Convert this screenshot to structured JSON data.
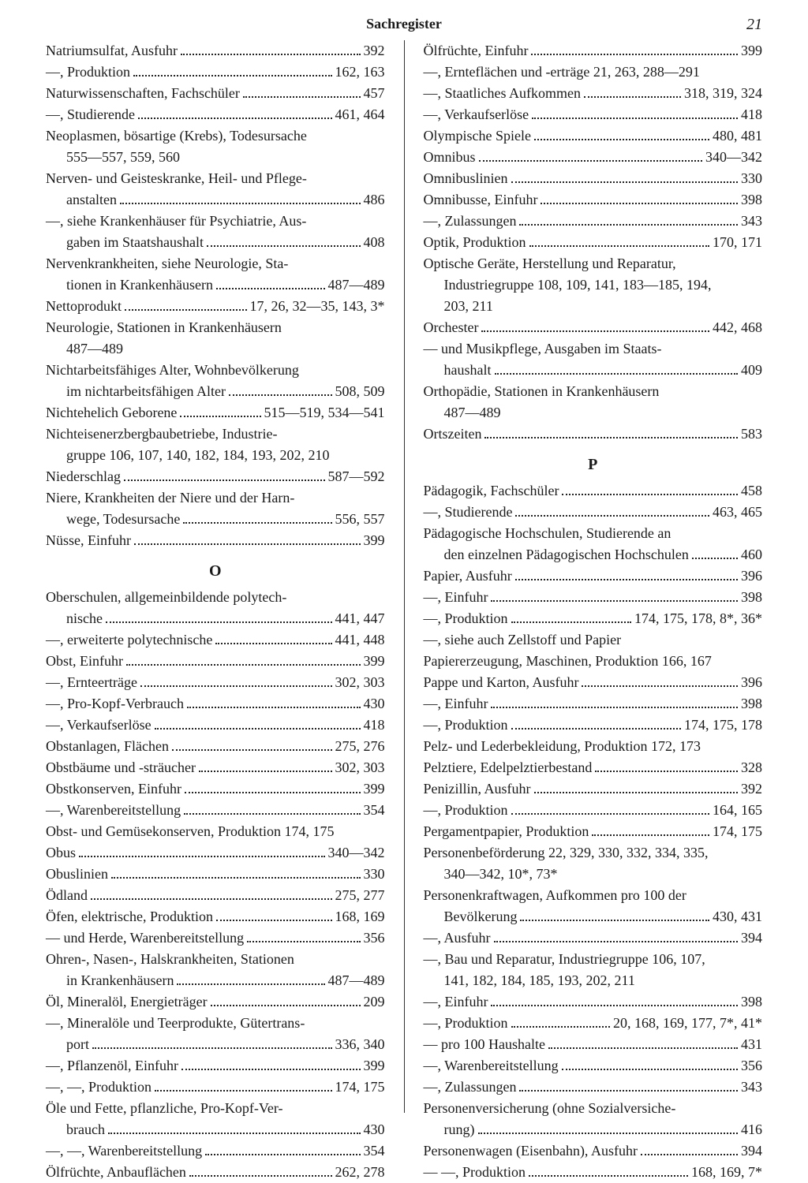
{
  "title": "Sachregister",
  "page_number": "21",
  "sections": {
    "O": "O",
    "P": "P"
  },
  "left": [
    {
      "t": "row",
      "lab": "Natriumsulfat, Ausfuhr",
      "pg": "392"
    },
    {
      "t": "row",
      "lab": "—, Produktion",
      "pg": "162, 163"
    },
    {
      "t": "row",
      "lab": "Naturwissenschaften, Fachschüler",
      "pg": "457"
    },
    {
      "t": "row",
      "lab": "—, Studierende",
      "pg": "461, 464"
    },
    {
      "t": "wrap",
      "text": "Neoplasmen, bösartige (Krebs), Todesursache"
    },
    {
      "t": "cont",
      "text": "555—557, 559, 560"
    },
    {
      "t": "wrap",
      "text": "Nerven- und Geisteskranke, Heil- und Pflege-"
    },
    {
      "t": "row",
      "lab": "anstalten",
      "indent": true,
      "pg": "486"
    },
    {
      "t": "wrap",
      "text": "—, siehe Krankenhäuser für Psychiatrie, Aus-"
    },
    {
      "t": "row",
      "lab": "gaben im Staatshaushalt",
      "indent": true,
      "pg": "408"
    },
    {
      "t": "wrap",
      "text": "Nervenkrankheiten, siehe Neurologie, Sta-"
    },
    {
      "t": "row",
      "lab": "tionen in Krankenhäusern",
      "indent": true,
      "pg": "487—489"
    },
    {
      "t": "row",
      "lab": "Nettoprodukt",
      "pg": "17, 26, 32—35, 143, 3*"
    },
    {
      "t": "wrap",
      "text": "Neurologie,  Stationen  in  Krankenhäusern"
    },
    {
      "t": "cont",
      "text": "487—489"
    },
    {
      "t": "wrap",
      "text": "Nichtarbeitsfähiges Alter, Wohnbevölkerung"
    },
    {
      "t": "row",
      "lab": "im nichtarbeitsfähigen Alter",
      "indent": true,
      "pg": "508, 509"
    },
    {
      "t": "row",
      "lab": "Nichtehelich Geborene",
      "pg": "515—519, 534—541"
    },
    {
      "t": "wrap",
      "text": "Nichteisenerzbergbaubetriebe, Industrie-"
    },
    {
      "t": "cont",
      "text": "gruppe 106, 107, 140, 182, 184, 193, 202, 210"
    },
    {
      "t": "row",
      "lab": "Niederschlag",
      "pg": "587—592"
    },
    {
      "t": "wrap",
      "text": "Niere, Krankheiten der Niere und der Harn-"
    },
    {
      "t": "row",
      "lab": "wege, Todesursache",
      "indent": true,
      "pg": "556, 557"
    },
    {
      "t": "row",
      "lab": "Nüsse, Einfuhr",
      "pg": "399"
    },
    {
      "t": "section",
      "key": "O"
    },
    {
      "t": "wrap",
      "text": "Oberschulen, allgemeinbildende polytech-"
    },
    {
      "t": "row",
      "lab": "nische",
      "indent": true,
      "pg": "441, 447"
    },
    {
      "t": "row",
      "lab": "—, erweiterte polytechnische",
      "pg": "441, 448"
    },
    {
      "t": "row",
      "lab": "Obst, Einfuhr",
      "pg": "399"
    },
    {
      "t": "row",
      "lab": "—, Ernteerträge",
      "pg": "302, 303"
    },
    {
      "t": "row",
      "lab": "—, Pro-Kopf-Verbrauch",
      "pg": "430"
    },
    {
      "t": "row",
      "lab": "—, Verkaufserlöse",
      "pg": "418"
    },
    {
      "t": "row",
      "lab": "Obstanlagen, Flächen",
      "pg": "275, 276"
    },
    {
      "t": "row",
      "lab": "Obstbäume und -sträucher",
      "pg": "302, 303"
    },
    {
      "t": "row",
      "lab": "Obstkonserven, Einfuhr",
      "pg": "399"
    },
    {
      "t": "row",
      "lab": "—, Warenbereitstellung",
      "pg": "354"
    },
    {
      "t": "wrap",
      "text": "Obst- und Gemüsekonserven, Produktion 174, 175"
    },
    {
      "t": "row",
      "lab": "Obus",
      "pg": "340—342"
    },
    {
      "t": "row",
      "lab": "Obuslinien",
      "pg": "330"
    },
    {
      "t": "row",
      "lab": "Ödland",
      "pg": "275, 277"
    },
    {
      "t": "row",
      "lab": "Öfen, elektrische, Produktion",
      "pg": "168, 169"
    },
    {
      "t": "row",
      "lab": "— und Herde, Warenbereitstellung",
      "pg": "356"
    },
    {
      "t": "wrap",
      "text": "Ohren-, Nasen-, Halskrankheiten, Stationen"
    },
    {
      "t": "row",
      "lab": "in Krankenhäusern",
      "indent": true,
      "pg": "487—489"
    },
    {
      "t": "row",
      "lab": "Öl, Mineralöl, Energieträger",
      "pg": "209"
    },
    {
      "t": "wrap",
      "text": "—, Mineralöle und Teerprodukte, Gütertrans-"
    },
    {
      "t": "row",
      "lab": "port",
      "indent": true,
      "pg": "336, 340"
    },
    {
      "t": "row",
      "lab": "—, Pflanzenöl, Einfuhr",
      "pg": "399"
    },
    {
      "t": "row",
      "lab": "—, —, Produktion",
      "pg": "174, 175"
    },
    {
      "t": "wrap",
      "text": "Öle und Fette, pflanzliche, Pro-Kopf-Ver-"
    },
    {
      "t": "row",
      "lab": "brauch",
      "indent": true,
      "pg": "430"
    },
    {
      "t": "row",
      "lab": "—, —, Warenbereitstellung",
      "pg": "354"
    },
    {
      "t": "row",
      "lab": "Ölfrüchte, Anbauflächen",
      "pg": "262, 278"
    }
  ],
  "right": [
    {
      "t": "row",
      "lab": "Ölfrüchte, Einfuhr",
      "pg": "399"
    },
    {
      "t": "wrap",
      "text": "—, Ernteflächen und -erträge 21, 263, 288—291"
    },
    {
      "t": "row",
      "lab": "—, Staatliches Aufkommen",
      "pg": "318, 319, 324"
    },
    {
      "t": "row",
      "lab": "—, Verkaufserlöse",
      "pg": "418"
    },
    {
      "t": "row",
      "lab": "Olympische Spiele",
      "pg": "480, 481"
    },
    {
      "t": "row",
      "lab": "Omnibus",
      "pg": "340—342"
    },
    {
      "t": "row",
      "lab": "Omnibuslinien",
      "pg": "330"
    },
    {
      "t": "row",
      "lab": "Omnibusse, Einfuhr",
      "pg": "398"
    },
    {
      "t": "row",
      "lab": "—, Zulassungen",
      "pg": "343"
    },
    {
      "t": "row",
      "lab": "Optik, Produktion",
      "pg": "170, 171"
    },
    {
      "t": "wrap",
      "text": "Optische Geräte, Herstellung und Reparatur,"
    },
    {
      "t": "cont",
      "text": "Industriegruppe 108, 109, 141, 183—185, 194,"
    },
    {
      "t": "cont",
      "text": "203, 211"
    },
    {
      "t": "row",
      "lab": "Orchester",
      "pg": "442, 468"
    },
    {
      "t": "wrap",
      "text": "— und Musikpflege, Ausgaben im Staats-"
    },
    {
      "t": "row",
      "lab": "haushalt",
      "indent": true,
      "pg": "409"
    },
    {
      "t": "wrap",
      "text": "Orthopädie,  Stationen  in  Krankenhäusern"
    },
    {
      "t": "cont",
      "text": "487—489"
    },
    {
      "t": "row",
      "lab": "Ortszeiten",
      "pg": "583"
    },
    {
      "t": "section",
      "key": "P"
    },
    {
      "t": "row",
      "lab": "Pädagogik, Fachschüler",
      "pg": "458"
    },
    {
      "t": "row",
      "lab": "—, Studierende",
      "pg": "463, 465"
    },
    {
      "t": "wrap",
      "text": "Pädagogische Hochschulen, Studierende an"
    },
    {
      "t": "row",
      "lab": "den einzelnen Pädagogischen Hochschulen",
      "indent": true,
      "pg": "460",
      "tight": true
    },
    {
      "t": "row",
      "lab": "Papier, Ausfuhr",
      "pg": "396"
    },
    {
      "t": "row",
      "lab": "—, Einfuhr",
      "pg": "398"
    },
    {
      "t": "row",
      "lab": "—, Produktion",
      "pg": "174, 175, 178, 8*, 36*"
    },
    {
      "t": "wrap",
      "text": "—, siehe auch Zellstoff und Papier"
    },
    {
      "t": "wrap",
      "text": "Papiererzeugung, Maschinen, Produktion 166, 167"
    },
    {
      "t": "row",
      "lab": "Pappe und Karton, Ausfuhr",
      "pg": "396"
    },
    {
      "t": "row",
      "lab": "—, Einfuhr",
      "pg": "398"
    },
    {
      "t": "row",
      "lab": "—, Produktion",
      "pg": "174, 175, 178"
    },
    {
      "t": "wrap",
      "text": "Pelz- und Lederbekleidung, Produktion 172, 173"
    },
    {
      "t": "row",
      "lab": "Pelztiere, Edelpelztierbestand",
      "pg": "328"
    },
    {
      "t": "row",
      "lab": "Penizillin, Ausfuhr",
      "pg": "392"
    },
    {
      "t": "row",
      "lab": "—, Produktion",
      "pg": "164, 165"
    },
    {
      "t": "row",
      "lab": "Pergamentpapier, Produktion",
      "pg": "174,  175"
    },
    {
      "t": "wrap",
      "text": "Personenbeförderung 22, 329, 330, 332, 334, 335,"
    },
    {
      "t": "cont",
      "text": "340—342, 10*, 73*"
    },
    {
      "t": "wrap",
      "text": "Personenkraftwagen, Aufkommen pro 100 der"
    },
    {
      "t": "row",
      "lab": "Bevölkerung",
      "indent": true,
      "pg": "430, 431"
    },
    {
      "t": "row",
      "lab": "—, Ausfuhr",
      "pg": "394"
    },
    {
      "t": "wrap",
      "text": "—, Bau und Reparatur, Industriegruppe 106, 107,"
    },
    {
      "t": "cont",
      "text": "141, 182, 184, 185, 193, 202, 211"
    },
    {
      "t": "row",
      "lab": "—, Einfuhr",
      "pg": "398"
    },
    {
      "t": "row",
      "lab": "—, Produktion",
      "pg": "20, 168, 169, 177, 7*, 41*"
    },
    {
      "t": "row",
      "lab": "— pro 100 Haushalte",
      "pg": "431"
    },
    {
      "t": "row",
      "lab": "—, Warenbereitstellung",
      "pg": "356"
    },
    {
      "t": "row",
      "lab": "—, Zulassungen",
      "pg": "343"
    },
    {
      "t": "wrap",
      "text": "Personenversicherung (ohne Sozialversiche-"
    },
    {
      "t": "row",
      "lab": "rung)",
      "indent": true,
      "pg": "416"
    },
    {
      "t": "row",
      "lab": "Personenwagen (Eisenbahn), Ausfuhr",
      "pg": "394"
    },
    {
      "t": "row",
      "lab": "— —, Produktion",
      "pg": "168, 169, 7*"
    }
  ]
}
